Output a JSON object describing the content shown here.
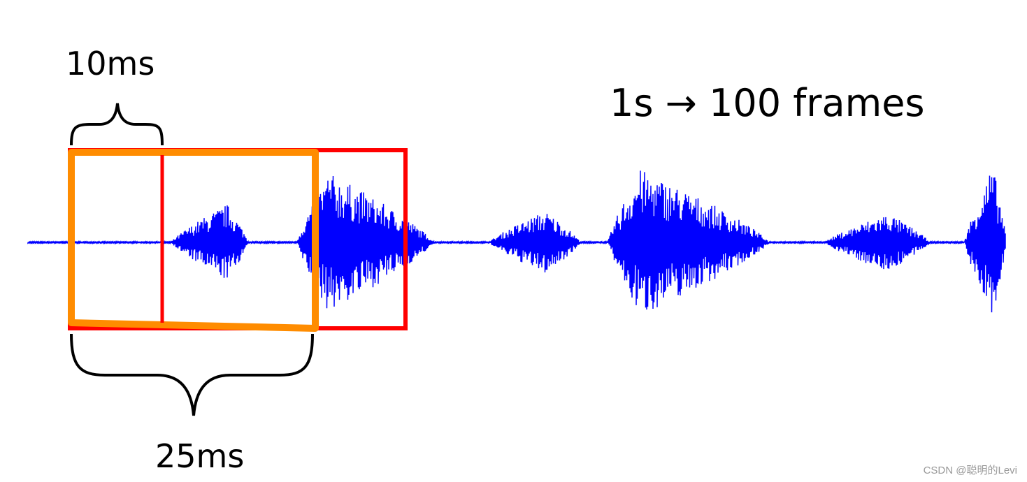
{
  "labels": {
    "hop": "10ms",
    "window": "25ms",
    "rate": "1s → 100 frames"
  },
  "watermark": "CSDN @聪明的Levi",
  "colors": {
    "waveform": "#0000ff",
    "frame_box_1": "#ff8c00",
    "frame_box_2": "#ff0000",
    "braces": "#000000"
  }
}
